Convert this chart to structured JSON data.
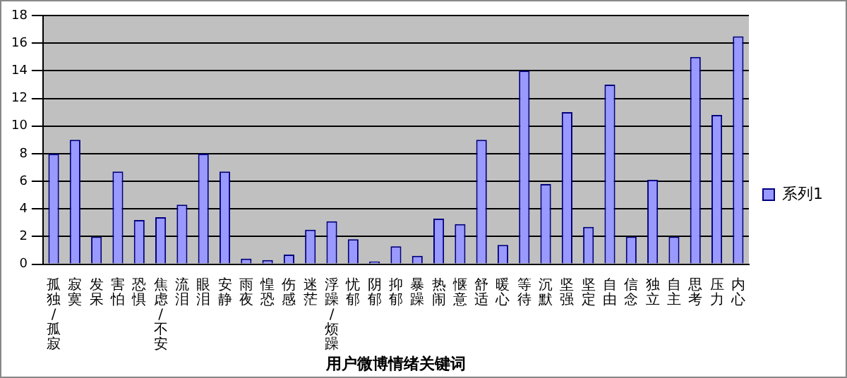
{
  "chart_data": {
    "type": "bar",
    "xlabel": "用户微博情绪关键词",
    "categories": [
      "孤独/孤寂",
      "寂寞",
      "发呆",
      "害怕",
      "恐惧",
      "焦虑/不安",
      "流泪",
      "眼泪",
      "安静",
      "雨夜",
      "惶恐",
      "伤感",
      "迷茫",
      "浮躁/烦躁",
      "忧郁",
      "阴郁",
      "抑郁",
      "暴躁",
      "热闹",
      "惬意",
      "舒适",
      "暖心",
      "等待",
      "沉默",
      "坚强",
      "坚定",
      "自由",
      "信念",
      "独立",
      "自主",
      "思考",
      "压力",
      "内心"
    ],
    "series": [
      {
        "name": "系列1",
        "color": "#9999ff",
        "values": [
          8,
          9,
          2,
          6.7,
          3.2,
          3.4,
          4.3,
          8,
          6.7,
          0.4,
          0.3,
          0.7,
          2.5,
          3.1,
          1.8,
          0.2,
          1.3,
          0.6,
          3.3,
          2.9,
          9,
          1.4,
          14,
          5.8,
          11,
          2.7,
          13,
          2,
          6.1,
          2,
          15,
          10.8,
          16.5
        ]
      }
    ],
    "ylim": [
      0,
      18
    ],
    "yticks": [
      0,
      2,
      4,
      6,
      8,
      10,
      12,
      14,
      16,
      18
    ],
    "grid": "y",
    "legend": "right"
  }
}
